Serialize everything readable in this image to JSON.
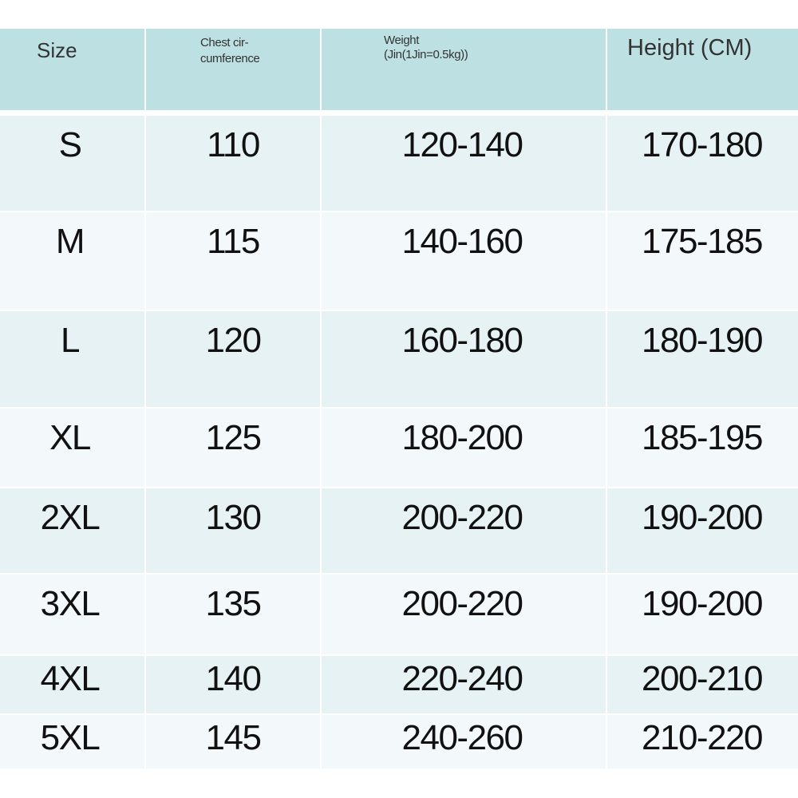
{
  "header": {
    "size": "Size",
    "chest": "Chest cir-\ncumference",
    "chest_line1": "Chest cir-",
    "chest_line2": "cumference",
    "weight_line1": "Weight",
    "weight_line2": "(Jin(1Jin=0.5kg))",
    "height": "Height (CM)"
  },
  "colors": {
    "header_bg": "#bde0e3",
    "row_odd": "#e6f2f3",
    "row_even": "#f3f9fb"
  },
  "rows": [
    {
      "size": "S",
      "chest": "110",
      "weight": "120-140",
      "height": "170-180"
    },
    {
      "size": "M",
      "chest": "115",
      "weight": "140-160",
      "height": "175-185"
    },
    {
      "size": "L",
      "chest": "120",
      "weight": "160-180",
      "height": "180-190"
    },
    {
      "size": "XL",
      "chest": "125",
      "weight": "180-200",
      "height": "185-195"
    },
    {
      "size": "2XL",
      "chest": "130",
      "weight": "200-220",
      "height": "190-200"
    },
    {
      "size": "3XL",
      "chest": "135",
      "weight": "200-220",
      "height": "190-200"
    },
    {
      "size": "4XL",
      "chest": "140",
      "weight": "220-240",
      "height": "200-210"
    },
    {
      "size": "5XL",
      "chest": "145",
      "weight": "240-260",
      "height": "210-220"
    }
  ]
}
